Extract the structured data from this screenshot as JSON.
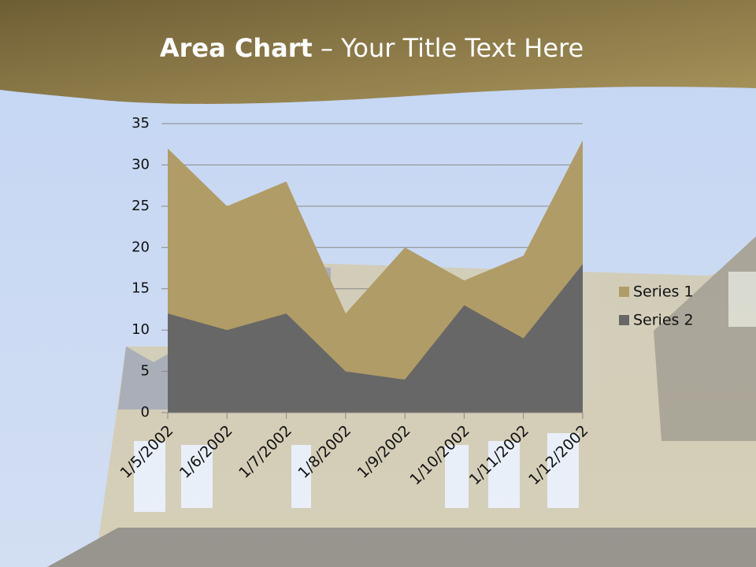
{
  "chart_data": {
    "type": "area",
    "title": {
      "bold": "Area Chart",
      "rest": "– Your Title Text Here"
    },
    "categories": [
      "1/5/2002",
      "1/6/2002",
      "1/7/2002",
      "1/8/2002",
      "1/9/2002",
      "1/10/2002",
      "1/11/2002",
      "1/12/2002"
    ],
    "series": [
      {
        "name": "Series 1",
        "color": "#b09c66",
        "values": [
          32,
          25,
          28,
          12,
          20,
          16,
          19,
          33
        ]
      },
      {
        "name": "Series 2",
        "color": "#676767",
        "values": [
          12,
          10,
          12,
          5,
          4,
          13,
          9,
          18
        ]
      }
    ],
    "ylim": [
      0,
      35
    ],
    "yticks": [
      0,
      5,
      10,
      15,
      20,
      25,
      30,
      35
    ],
    "grid": true,
    "legend": "right"
  }
}
